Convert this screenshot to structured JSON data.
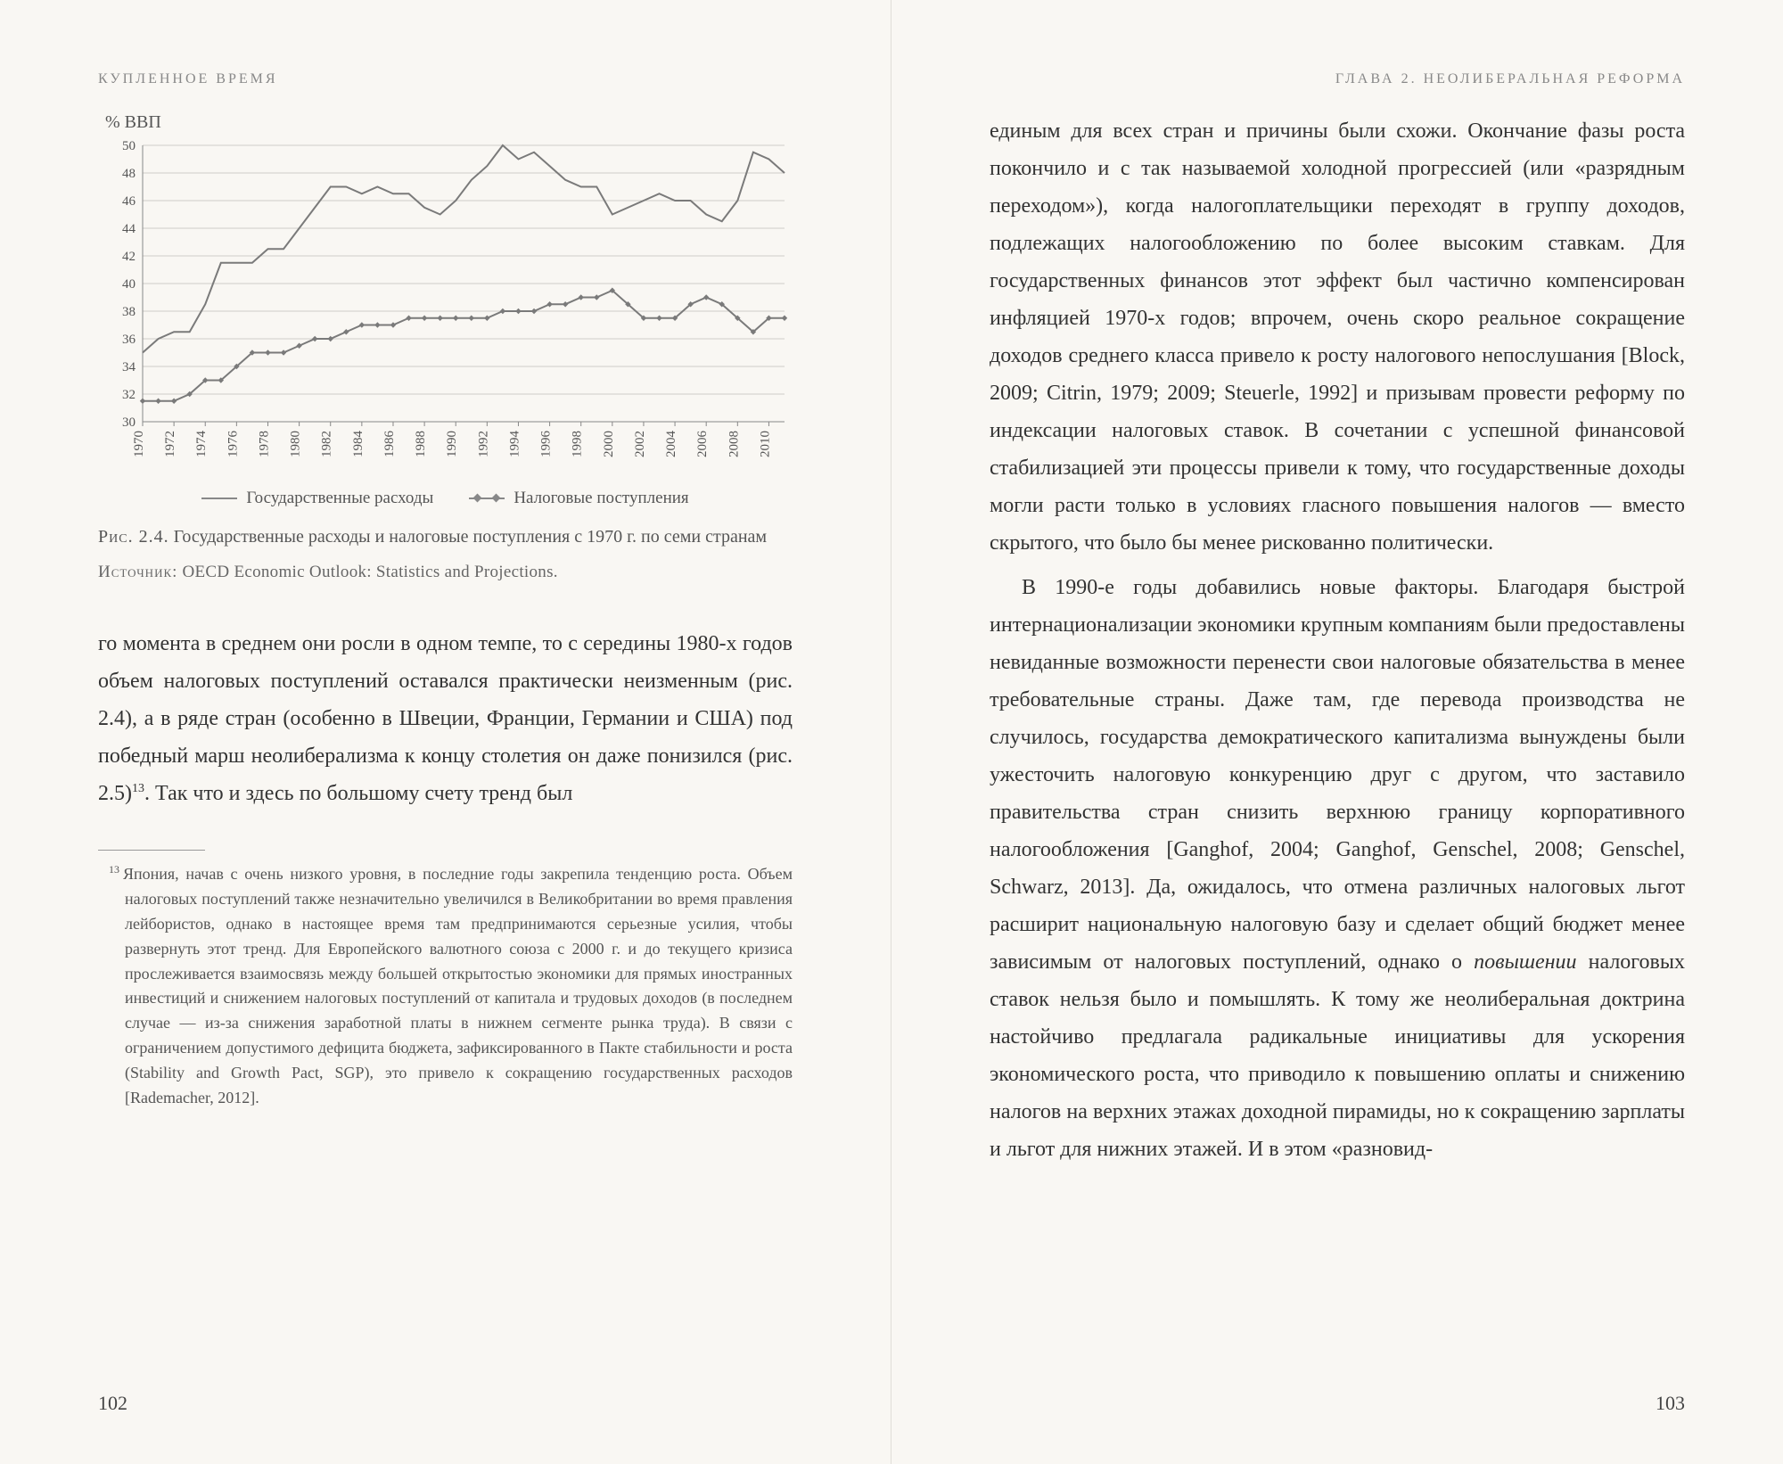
{
  "left": {
    "running_head": "КУПЛЕННОЕ ВРЕМЯ",
    "chart": {
      "type": "line",
      "y_axis_title": "% ВВП",
      "ylim": [
        30,
        50
      ],
      "ytick_step": 2,
      "xlim": [
        1970,
        2011
      ],
      "xticks": [
        1970,
        1972,
        1974,
        1976,
        1978,
        1980,
        1982,
        1984,
        1986,
        1988,
        1990,
        1992,
        1994,
        1996,
        1998,
        2000,
        2002,
        2004,
        2006,
        2008,
        2010
      ],
      "grid_color": "#d0cec8",
      "line_color": "#7a7a7a",
      "background_color": "#f9f7f3",
      "axis_fontsize": 15,
      "series": [
        {
          "name": "expenditure",
          "label": "Государственные расходы",
          "marker": "none",
          "values": [
            [
              1970,
              35.0
            ],
            [
              1971,
              36.0
            ],
            [
              1972,
              36.5
            ],
            [
              1973,
              36.5
            ],
            [
              1974,
              38.5
            ],
            [
              1975,
              41.5
            ],
            [
              1976,
              41.5
            ],
            [
              1977,
              41.5
            ],
            [
              1978,
              42.5
            ],
            [
              1979,
              42.5
            ],
            [
              1980,
              44.0
            ],
            [
              1981,
              45.5
            ],
            [
              1982,
              47.0
            ],
            [
              1983,
              47.0
            ],
            [
              1984,
              46.5
            ],
            [
              1985,
              47.0
            ],
            [
              1986,
              46.5
            ],
            [
              1987,
              46.5
            ],
            [
              1988,
              45.5
            ],
            [
              1989,
              45.0
            ],
            [
              1990,
              46.0
            ],
            [
              1991,
              47.5
            ],
            [
              1992,
              48.5
            ],
            [
              1993,
              50.0
            ],
            [
              1994,
              49.0
            ],
            [
              1995,
              49.5
            ],
            [
              1996,
              48.5
            ],
            [
              1997,
              47.5
            ],
            [
              1998,
              47.0
            ],
            [
              1999,
              47.0
            ],
            [
              2000,
              45.0
            ],
            [
              2001,
              45.5
            ],
            [
              2002,
              46.0
            ],
            [
              2003,
              46.5
            ],
            [
              2004,
              46.0
            ],
            [
              2005,
              46.0
            ],
            [
              2006,
              45.0
            ],
            [
              2007,
              44.5
            ],
            [
              2008,
              46.0
            ],
            [
              2009,
              49.5
            ],
            [
              2010,
              49.0
            ],
            [
              2011,
              48.0
            ]
          ]
        },
        {
          "name": "revenue",
          "label": "Налоговые поступления",
          "marker": "diamond",
          "values": [
            [
              1970,
              31.5
            ],
            [
              1971,
              31.5
            ],
            [
              1972,
              31.5
            ],
            [
              1973,
              32.0
            ],
            [
              1974,
              33.0
            ],
            [
              1975,
              33.0
            ],
            [
              1976,
              34.0
            ],
            [
              1977,
              35.0
            ],
            [
              1978,
              35.0
            ],
            [
              1979,
              35.0
            ],
            [
              1980,
              35.5
            ],
            [
              1981,
              36.0
            ],
            [
              1982,
              36.0
            ],
            [
              1983,
              36.5
            ],
            [
              1984,
              37.0
            ],
            [
              1985,
              37.0
            ],
            [
              1986,
              37.0
            ],
            [
              1987,
              37.5
            ],
            [
              1988,
              37.5
            ],
            [
              1989,
              37.5
            ],
            [
              1990,
              37.5
            ],
            [
              1991,
              37.5
            ],
            [
              1992,
              37.5
            ],
            [
              1993,
              38.0
            ],
            [
              1994,
              38.0
            ],
            [
              1995,
              38.0
            ],
            [
              1996,
              38.5
            ],
            [
              1997,
              38.5
            ],
            [
              1998,
              39.0
            ],
            [
              1999,
              39.0
            ],
            [
              2000,
              39.5
            ],
            [
              2001,
              38.5
            ],
            [
              2002,
              37.5
            ],
            [
              2003,
              37.5
            ],
            [
              2004,
              37.5
            ],
            [
              2005,
              38.5
            ],
            [
              2006,
              39.0
            ],
            [
              2007,
              38.5
            ],
            [
              2008,
              37.5
            ],
            [
              2009,
              36.5
            ],
            [
              2010,
              37.5
            ],
            [
              2011,
              37.5
            ]
          ]
        }
      ]
    },
    "legend_expenditure": "Государственные расходы",
    "legend_revenue": "Налоговые поступления",
    "caption_label": "Рис. 2.4.",
    "caption_text": "Государственные расходы и налоговые поступления с 1970 г. по семи странам",
    "source_label": "Источник:",
    "source_text": "OECD Economic Outlook: Statistics and Projections.",
    "body": "го момента в среднем они росли в одном темпе, то с середины 1980-х годов объем налоговых поступлений оставался практически неизменным (рис. 2.4), а в ряде стран (особенно в Швеции, Франции, Германии и США) под победный марш неолиберализма к концу столетия он даже понизился (рис. 2.5)",
    "body_tail": ". Так что и здесь по большому счету тренд был",
    "footnote_num": "13",
    "footnote": "Япония, начав с очень низкого уровня, в последние годы закрепила тенденцию роста. Объем налоговых поступлений также незначительно увеличился в Великобритании во время правления лейбористов, однако в настоящее время там предпринимаются серьезные усилия, чтобы развернуть этот тренд. Для Европейского валютного союза с 2000 г. и до текущего кризиса прослеживается взаимосвязь между большей открытостью экономики для прямых иностранных инвестиций и снижением налоговых поступлений от капитала и трудовых доходов (в последнем случае — из-за снижения заработной платы в нижнем сегменте рынка труда). В связи с ограничением допустимого дефицита бюджета, зафиксированного в Пакте стабильности и роста (Stability and Growth Pact, SGP), это привело к сокращению государственных расходов [Rademacher, 2012].",
    "pagenum": "102"
  },
  "right": {
    "running_head": "ГЛАВА 2. НЕОЛИБЕРАЛЬНАЯ РЕФОРМА",
    "para1": "единым для всех стран и причины были схожи. Окончание фазы роста покончило и с так называемой холодной прогрессией (или «разрядным переходом»), когда налогоплательщики переходят в группу доходов, подлежащих налогообложению по более высоким ставкам. Для государственных финансов этот эффект был частично компенсирован инфляцией 1970-х годов; впрочем, очень скоро реальное сокращение доходов среднего класса привело к росту налогового непослушания [Block, 2009; Citrin, 1979; 2009; Steuerle, 1992] и призывам провести реформу по индексации налоговых ставок. В сочетании с успешной финансовой стабилизацией эти процессы привели к тому, что государственные доходы могли расти только в условиях гласного повышения налогов — вместо скрытого, что было бы менее рискованно политически.",
    "para2_a": "В 1990-е годы добавились новые факторы. Благодаря быстрой интернационализации экономики крупным компаниям были предоставлены невиданные возможности перенести свои налоговые обязательства в менее требовательные страны. Даже там, где перевода производства не случилось, государства демократического капитализма вынуждены были ужесточить налоговую конкуренцию друг с другом, что заставило правительства стран снизить верхнюю границу корпоративного налогообложения [Ganghof, 2004; Ganghof, Genschel, 2008; Genschel, Schwarz, 2013]. Да, ожидалось, что отмена различных налоговых льгот расширит национальную налоговую базу и сделает общий бюджет менее зависимым от налоговых поступлений, однако о ",
    "para2_em": "повышении",
    "para2_b": " налоговых ставок нельзя было и помышлять. К тому же неолиберальная доктрина настойчиво предлагала радикальные инициативы для ускорения экономического роста, что приводило к повышению оплаты и снижению налогов на верхних этажах доходной пирамиды, но к сокращению зарплаты и льгот для нижних этажей. И в этом «разновид-",
    "pagenum": "103"
  }
}
